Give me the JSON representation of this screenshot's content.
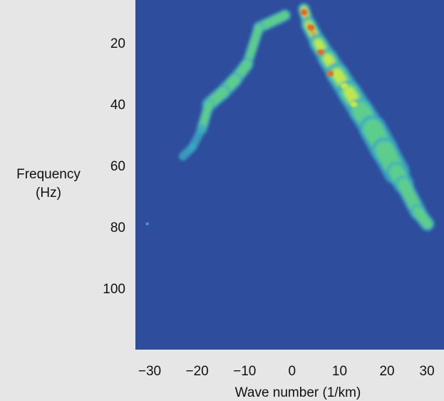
{
  "chart_data": {
    "type": "heatmap",
    "title": "",
    "xlabel": "Wave number (1/km)",
    "ylabel": [
      "Frequency",
      "(Hz)"
    ],
    "xlim": [
      -33,
      32
    ],
    "ylim": [
      6,
      120
    ],
    "y_inverted": true,
    "x_ticks": [
      -30,
      -20,
      -10,
      0,
      10,
      20,
      30
    ],
    "x_tick_labels": [
      "−30",
      "−20",
      "−10",
      "0",
      "10",
      "20",
      "30"
    ],
    "y_ticks": [
      20,
      40,
      60,
      80,
      100
    ],
    "y_tick_labels": [
      "20",
      "40",
      "60",
      "80",
      "100"
    ],
    "background_level": 0,
    "colors": {
      "background": "#2e4d9c",
      "page": "#e6e6e6",
      "level_1": "#3aa8c4",
      "level_2": "#5fcf8a",
      "level_3": "#c6e84a",
      "level_4": "#e36a2c"
    },
    "ridges": [
      {
        "name_hidden": true,
        "points": [
          {
            "k": 2.5,
            "f": 9,
            "width": 2.2,
            "level": 4
          },
          {
            "k": 3.5,
            "f": 14,
            "width": 3.0,
            "level": 4
          },
          {
            "k": 5.5,
            "f": 20,
            "width": 3.6,
            "level": 3
          },
          {
            "k": 7.5,
            "f": 25,
            "width": 4.0,
            "level": 3
          },
          {
            "k": 9.5,
            "f": 30,
            "width": 4.5,
            "level": 3
          },
          {
            "k": 12,
            "f": 36,
            "width": 5.0,
            "level": 3
          },
          {
            "k": 14.5,
            "f": 42,
            "width": 5.0,
            "level": 2
          },
          {
            "k": 17,
            "f": 48,
            "width": 5.5,
            "level": 2
          },
          {
            "k": 19.5,
            "f": 55,
            "width": 6.0,
            "level": 2
          },
          {
            "k": 22,
            "f": 62,
            "width": 5.0,
            "level": 2
          },
          {
            "k": 23.5,
            "f": 66,
            "width": 3.5,
            "level": 2
          },
          {
            "k": 26.5,
            "f": 75,
            "width": 3.5,
            "level": 2
          },
          {
            "k": 28.5,
            "f": 79,
            "width": 2.5,
            "level": 1
          }
        ]
      },
      {
        "name_hidden": true,
        "points": [
          {
            "k": -1.5,
            "f": 11,
            "width": 3.0,
            "level": 2
          },
          {
            "k": -7,
            "f": 15,
            "width": 2.0,
            "level": 2
          },
          {
            "k": -9.5,
            "f": 27,
            "width": 2.5,
            "level": 2
          },
          {
            "k": -12,
            "f": 32,
            "width": 3.0,
            "level": 2
          },
          {
            "k": -14.5,
            "f": 36,
            "width": 3.0,
            "level": 2
          },
          {
            "k": -17.5,
            "f": 40,
            "width": 3.0,
            "level": 2
          },
          {
            "k": -19,
            "f": 48,
            "width": 1.5,
            "level": 1
          },
          {
            "k": -21,
            "f": 54,
            "width": 2.0,
            "level": 1
          },
          {
            "k": -23,
            "f": 57,
            "width": 1.5,
            "level": 1
          }
        ]
      }
    ],
    "hot_spots": [
      {
        "k": 2.5,
        "f": 10,
        "level": 4
      },
      {
        "k": 4,
        "f": 15,
        "level": 4
      },
      {
        "k": 6,
        "f": 23,
        "level": 4
      },
      {
        "k": 8,
        "f": 30,
        "level": 4
      },
      {
        "k": 11,
        "f": 34,
        "level": 3
      },
      {
        "k": 13,
        "f": 40,
        "level": 3
      }
    ],
    "isolated_points": [
      {
        "k": -30.5,
        "f": 79,
        "level": 1
      }
    ]
  }
}
